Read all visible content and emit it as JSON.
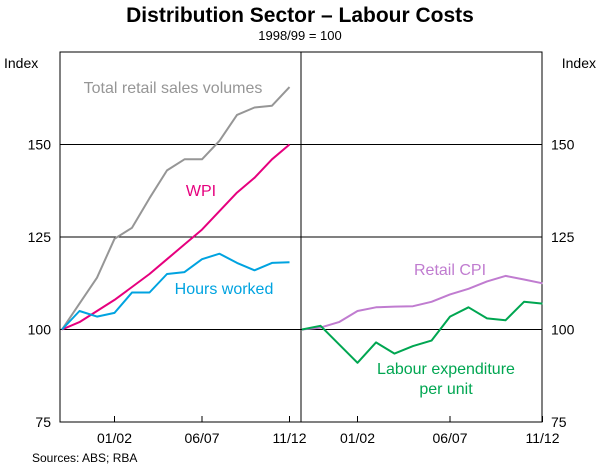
{
  "chart_data": {
    "type": "line",
    "title": "Distribution Sector – Labour Costs",
    "subtitle": "1998/99 = 100",
    "ylabel_left": "Index",
    "ylabel_right": "Index",
    "ylim": [
      75,
      175
    ],
    "yticks": [
      75,
      100,
      125,
      150
    ],
    "source": "Sources: ABS; RBA",
    "panels": [
      {
        "name": "left",
        "x": [
          0,
          1,
          2,
          3,
          4,
          5,
          6,
          7,
          8,
          9,
          10,
          11,
          12,
          13
        ],
        "xticks": [
          {
            "pos": 3,
            "label": "01/02"
          },
          {
            "pos": 8,
            "label": "06/07"
          },
          {
            "pos": 13,
            "label": "11/12"
          }
        ],
        "series": [
          {
            "name": "Total retail sales volumes",
            "color": "#969696",
            "values": [
              100,
              107,
              114,
              124.5,
              127.5,
              135.5,
              143,
              146,
              146,
              151,
              158,
              160,
              160.5,
              165.5
            ]
          },
          {
            "name": "WPI",
            "color": "#e6007e",
            "values": [
              100,
              102,
              105,
              108,
              111.5,
              115,
              119,
              123,
              127,
              132,
              137,
              141,
              146,
              150
            ]
          },
          {
            "name": "Hours worked",
            "color": "#00a3e0",
            "values": [
              100,
              105,
              103.5,
              104.5,
              110,
              110,
              115,
              115.5,
              119,
              120.5,
              118,
              116,
              118,
              118.2
            ]
          }
        ]
      },
      {
        "name": "right",
        "x": [
          0,
          1,
          2,
          3,
          4,
          5,
          6,
          7,
          8,
          9,
          10,
          11,
          12,
          13
        ],
        "xticks": [
          {
            "pos": 3,
            "label": "01/02"
          },
          {
            "pos": 8,
            "label": "06/07"
          },
          {
            "pos": 13,
            "label": "11/12"
          }
        ],
        "series": [
          {
            "name": "Retail CPI",
            "color": "#c07cd0",
            "values": [
              100,
              100.5,
              102,
              105,
              106,
              106.2,
              106.3,
              107.5,
              109.5,
              111,
              113,
              114.5,
              113.5,
              112.5
            ]
          },
          {
            "name": "Labour expenditure per unit",
            "color": "#00a651",
            "values": [
              100,
              101,
              96,
              91,
              96.5,
              93.5,
              95.5,
              97,
              103.5,
              106,
              103,
              102.5,
              107.5,
              107
            ]
          }
        ]
      }
    ],
    "annotations": [
      {
        "panel": "left",
        "series": "Total retail sales volumes",
        "lines": [
          "Total retail sales volumes"
        ]
      },
      {
        "panel": "left",
        "series": "WPI",
        "lines": [
          "WPI"
        ]
      },
      {
        "panel": "left",
        "series": "Hours worked",
        "lines": [
          "Hours worked"
        ]
      },
      {
        "panel": "right",
        "series": "Retail CPI",
        "lines": [
          "Retail CPI"
        ]
      },
      {
        "panel": "right",
        "series": "Labour expenditure per unit",
        "lines": [
          "Labour expenditure",
          "per unit"
        ]
      }
    ]
  }
}
